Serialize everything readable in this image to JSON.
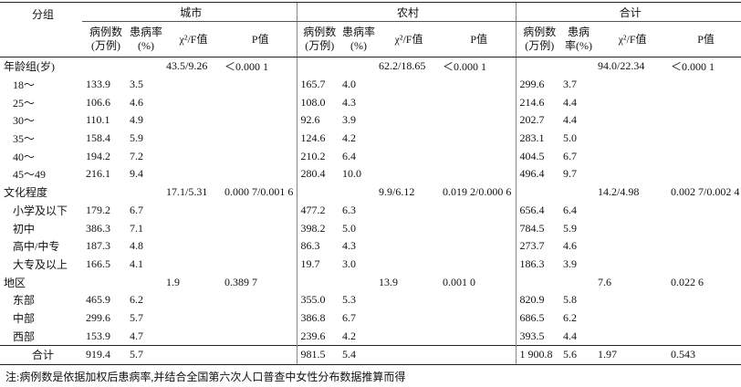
{
  "header": {
    "group_label": "分组",
    "groups": [
      "城市",
      "农村",
      "合计"
    ],
    "columns": [
      "病例数(万例)",
      "患病率(%)",
      "χ²/F值",
      "P值"
    ]
  },
  "table": {
    "rows": [
      {
        "label": "年龄组(岁)",
        "cells": [
          null,
          null,
          "43.5/9.26",
          "＜0.000 1",
          null,
          null,
          "62.2/18.65",
          "＜0.000 1",
          null,
          null,
          "94.0/22.34",
          "＜0.000 1"
        ]
      },
      {
        "label": "18～",
        "cells": [
          "133.9",
          "3.5",
          null,
          null,
          "165.7",
          "4.0",
          null,
          null,
          "299.6",
          "3.7",
          null,
          null
        ]
      },
      {
        "label": "25～",
        "cells": [
          "106.6",
          "4.6",
          null,
          null,
          "108.0",
          "4.3",
          null,
          null,
          "214.6",
          "4.4",
          null,
          null
        ]
      },
      {
        "label": "30～",
        "cells": [
          "110.1",
          "4.9",
          null,
          null,
          "92.6",
          "3.9",
          null,
          null,
          "202.7",
          "4.4",
          null,
          null
        ]
      },
      {
        "label": "35～",
        "cells": [
          "158.4",
          "5.9",
          null,
          null,
          "124.6",
          "4.2",
          null,
          null,
          "283.1",
          "5.0",
          null,
          null
        ]
      },
      {
        "label": "40～",
        "cells": [
          "194.2",
          "7.2",
          null,
          null,
          "210.2",
          "6.4",
          null,
          null,
          "404.5",
          "6.7",
          null,
          null
        ]
      },
      {
        "label": "45～49",
        "cells": [
          "216.1",
          "9.4",
          null,
          null,
          "280.4",
          "10.0",
          null,
          null,
          "496.4",
          "9.7",
          null,
          null
        ]
      },
      {
        "label": "文化程度",
        "cells": [
          null,
          null,
          "17.1/5.31",
          "0.000 7/0.001 6",
          null,
          null,
          "9.9/6.12",
          "0.019 2/0.000 6",
          null,
          null,
          "14.2/4.98",
          "0.002 7/0.002 4"
        ]
      },
      {
        "label": "小学及以下",
        "cells": [
          "179.2",
          "6.7",
          null,
          null,
          "477.2",
          "6.3",
          null,
          null,
          "656.4",
          "6.4",
          null,
          null
        ]
      },
      {
        "label": "初中",
        "cells": [
          "386.3",
          "7.1",
          null,
          null,
          "398.2",
          "5.0",
          null,
          null,
          "784.5",
          "5.9",
          null,
          null
        ]
      },
      {
        "label": "高中/中专",
        "cells": [
          "187.3",
          "4.8",
          null,
          null,
          "86.3",
          "4.3",
          null,
          null,
          "273.7",
          "4.6",
          null,
          null
        ]
      },
      {
        "label": "大专及以上",
        "cells": [
          "166.5",
          "4.1",
          null,
          null,
          "19.7",
          "3.0",
          null,
          null,
          "186.3",
          "3.9",
          null,
          null
        ]
      },
      {
        "label": "地区",
        "cells": [
          null,
          null,
          "1.9",
          "0.389 7",
          null,
          null,
          "13.9",
          "0.001 0",
          null,
          null,
          "7.6",
          "0.022 6"
        ]
      },
      {
        "label": "东部",
        "cells": [
          "465.9",
          "6.2",
          null,
          null,
          "355.0",
          "5.3",
          null,
          null,
          "820.9",
          "5.8",
          null,
          null
        ]
      },
      {
        "label": "中部",
        "cells": [
          "299.6",
          "5.7",
          null,
          null,
          "386.8",
          "6.7",
          null,
          null,
          "686.5",
          "6.2",
          null,
          null
        ]
      },
      {
        "label": "西部",
        "cells": [
          "153.9",
          "4.7",
          null,
          null,
          "239.6",
          "4.2",
          null,
          null,
          "393.5",
          "4.4",
          null,
          null
        ]
      },
      {
        "label": "合计",
        "cells": [
          "919.4",
          "5.7",
          null,
          null,
          "981.5",
          "5.4",
          null,
          null,
          "1 900.8",
          "5.6",
          "1.97",
          "0.543"
        ]
      }
    ]
  },
  "note": "注:病例数是依据加权后患病率,并结合全国第六次人口普查中女性分布数据推算而得"
}
